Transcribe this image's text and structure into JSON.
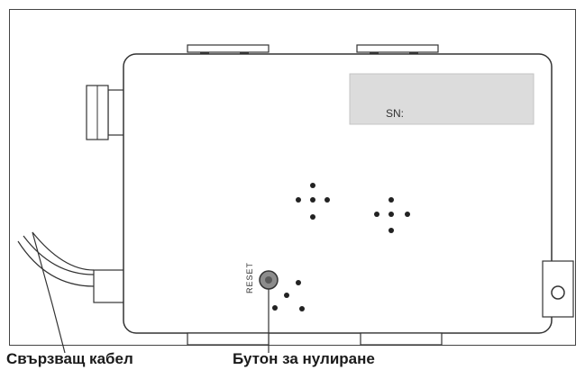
{
  "device": {
    "serial_label": "SN:",
    "reset_label": "RESET"
  },
  "callouts": {
    "connecting_cable": "Свързващ кабел",
    "reset_button": "Бутон за нулиране"
  },
  "colors": {
    "outline": "#333333",
    "label_panel": "#dcdcdc",
    "reset_button_fill": "#8c8c8c"
  }
}
